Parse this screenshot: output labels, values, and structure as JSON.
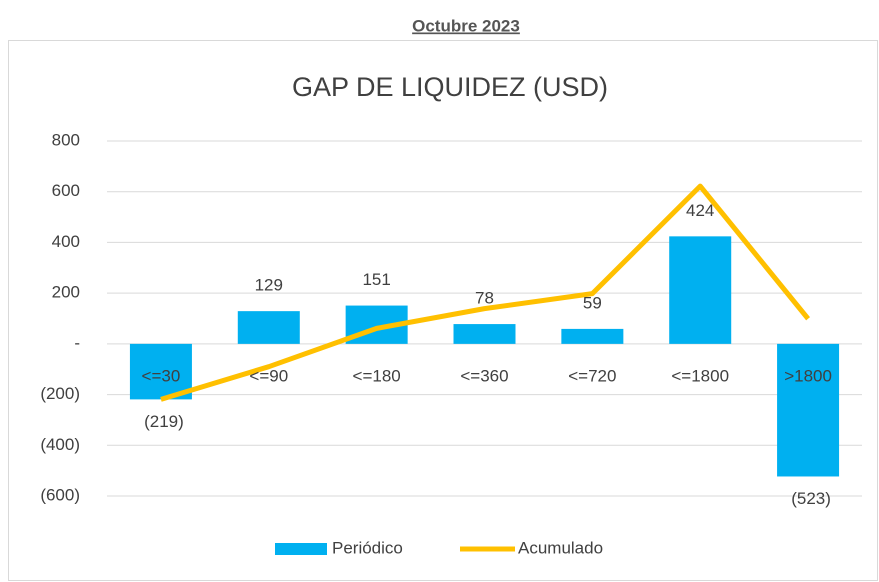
{
  "heading": "Octubre 2023",
  "chart_data": {
    "type": "bar_line",
    "title": "GAP DE LIQUIDEZ (USD)",
    "categories": [
      "<=30",
      "<=90",
      "<=180",
      "<=360",
      "<=720",
      "<=1800",
      ">1800"
    ],
    "series": [
      {
        "name": "Periódico",
        "type": "bar",
        "color": "#00b0f0",
        "values": [
          -219,
          129,
          151,
          78,
          59,
          424,
          -523
        ],
        "value_labels": [
          "(219)",
          "129",
          "151",
          "78",
          "59",
          "424",
          "(523)"
        ]
      },
      {
        "name": "Acumulado",
        "type": "line",
        "color": "#ffc000",
        "values": [
          -219,
          -90,
          61,
          139,
          198,
          622,
          99
        ]
      }
    ],
    "ylim": [
      -600,
      800
    ],
    "yticks": [
      {
        "value": -600,
        "label": "(600)"
      },
      {
        "value": -400,
        "label": "(400)"
      },
      {
        "value": -200,
        "label": "(200)"
      },
      {
        "value": 0,
        "label": "-"
      },
      200,
      400,
      600,
      800
    ],
    "grid": true,
    "legend": "bottom"
  }
}
